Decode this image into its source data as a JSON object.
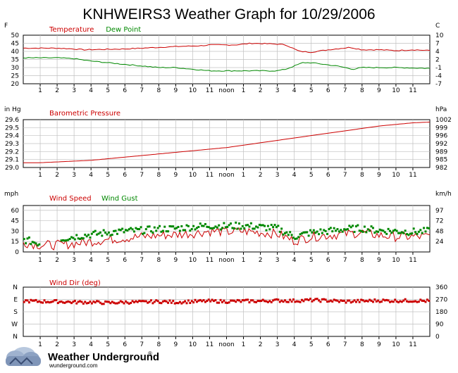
{
  "title": "KNHWEIRS3 Weather Graph for 10/29/2006",
  "footer": {
    "brand": "Weather Underground",
    "mark": "®",
    "url": "wunderground.com"
  },
  "colors": {
    "red": "#cc0000",
    "green": "#008800",
    "grid": "#c0c0c0",
    "frame": "#000000"
  },
  "x_tick_labels": [
    "1",
    "2",
    "3",
    "4",
    "5",
    "6",
    "7",
    "8",
    "9",
    "10",
    "11",
    "noon",
    "1",
    "2",
    "3",
    "4",
    "5",
    "6",
    "7",
    "8",
    "9",
    "10",
    "11"
  ],
  "chart_data": [
    {
      "type": "line",
      "panel": "temperature",
      "left_unit": "F",
      "right_unit": "C",
      "ylim": [
        20,
        50
      ],
      "y_ticks": [
        20,
        25,
        30,
        35,
        40,
        45,
        50
      ],
      "right_ticks": [
        "-7",
        "-4",
        "-1",
        "2",
        "4",
        "7",
        "10"
      ],
      "series": [
        {
          "name": "Temperature",
          "color": "#cc0000",
          "x": [
            0,
            2,
            3,
            3.6,
            6,
            9,
            10.5,
            11,
            12.5,
            13.5,
            15,
            15.5,
            16.3,
            17,
            18,
            19.3,
            20,
            21,
            22,
            23,
            24
          ],
          "y": [
            42,
            42,
            41.5,
            41,
            41.5,
            43,
            43.5,
            44,
            44,
            45,
            44.5,
            44,
            40,
            39.5,
            41,
            42.5,
            41,
            41,
            40.5,
            41,
            40.5
          ]
        },
        {
          "name": "Dew Point",
          "color": "#008800",
          "x": [
            0,
            2,
            3,
            4,
            6,
            8,
            9,
            10,
            11,
            13,
            15,
            15.5,
            16.5,
            17,
            18.5,
            19.5,
            20,
            20.5,
            21,
            22,
            24
          ],
          "y": [
            36,
            36,
            35.5,
            34,
            32,
            30,
            30,
            29,
            28,
            28,
            28,
            29,
            33,
            33,
            31,
            29,
            30,
            30,
            30,
            30,
            29.5
          ]
        }
      ]
    },
    {
      "type": "line",
      "panel": "pressure",
      "left_unit": "in Hg",
      "right_unit": "hPa",
      "ylim": [
        29.0,
        29.6
      ],
      "y_ticks": [
        29.0,
        29.1,
        29.2,
        29.3,
        29.4,
        29.5,
        29.6
      ],
      "right_ticks": [
        "982",
        "985",
        "989",
        "992",
        "996",
        "999",
        "1002"
      ],
      "series": [
        {
          "name": "Barometric Pressure",
          "color": "#cc0000",
          "x": [
            0,
            1,
            2,
            3,
            4,
            5,
            6,
            7,
            8,
            9,
            10,
            11,
            12,
            13,
            14,
            15,
            16,
            17,
            18,
            19,
            20,
            21,
            22,
            23,
            24
          ],
          "y": [
            29.06,
            29.06,
            29.07,
            29.08,
            29.09,
            29.11,
            29.13,
            29.15,
            29.17,
            29.19,
            29.21,
            29.23,
            29.25,
            29.28,
            29.31,
            29.34,
            29.37,
            29.4,
            29.43,
            29.46,
            29.49,
            29.52,
            29.54,
            29.56,
            29.57
          ]
        }
      ]
    },
    {
      "type": "line",
      "panel": "wind",
      "left_unit": "mph",
      "right_unit": "km/h",
      "ylim": [
        0,
        67
      ],
      "y_ticks": [
        0,
        15,
        30,
        45,
        60
      ],
      "right_ticks": [
        "24",
        "48",
        "72",
        "97"
      ],
      "right_ticks_mph": [
        15,
        30,
        45,
        60
      ],
      "series": [
        {
          "name": "Wind Speed",
          "color": "#cc0000",
          "x": [
            0,
            1,
            2,
            3,
            4,
            5,
            6,
            7,
            8,
            9,
            10,
            11,
            12,
            13,
            14,
            15,
            16,
            17,
            18,
            19,
            20,
            21,
            22,
            23,
            24
          ],
          "y": [
            14,
            10,
            10,
            12,
            15,
            18,
            20,
            22,
            24,
            25,
            27,
            30,
            29,
            30,
            28,
            26,
            16,
            22,
            24,
            26,
            28,
            24,
            22,
            22,
            22
          ]
        },
        {
          "name": "Wind Gust",
          "color": "#008800",
          "style": "points",
          "x": [
            0,
            1,
            2,
            3,
            4,
            5,
            6,
            7,
            8,
            9,
            10,
            11,
            12,
            13,
            14,
            15,
            16,
            17,
            18,
            19,
            20,
            21,
            22,
            23,
            24
          ],
          "y": [
            18,
            12,
            18,
            22,
            25,
            28,
            30,
            31,
            33,
            34,
            36,
            38,
            37,
            38,
            36,
            34,
            22,
            28,
            30,
            33,
            34,
            31,
            30,
            29,
            30
          ]
        }
      ]
    },
    {
      "type": "scatter",
      "panel": "wind_dir",
      "left_ticks": [
        "N",
        "W",
        "S",
        "E",
        "N"
      ],
      "ylim": [
        0,
        360
      ],
      "y_ticks": [
        0,
        90,
        180,
        270,
        360
      ],
      "right_ticks": [
        "0",
        "90",
        "180",
        "270",
        "360"
      ],
      "series": [
        {
          "name": "Wind Dir (deg)",
          "color": "#cc0000",
          "x": [
            0,
            1,
            2,
            3,
            4,
            5,
            6,
            7,
            8,
            9,
            10,
            11,
            12,
            13,
            14,
            15,
            16,
            17,
            18,
            19,
            20,
            21,
            22,
            23,
            24
          ],
          "y": [
            260,
            255,
            255,
            250,
            250,
            245,
            250,
            250,
            255,
            250,
            255,
            258,
            255,
            258,
            258,
            262,
            260,
            265,
            262,
            255,
            258,
            262,
            260,
            262,
            258
          ]
        }
      ]
    }
  ]
}
